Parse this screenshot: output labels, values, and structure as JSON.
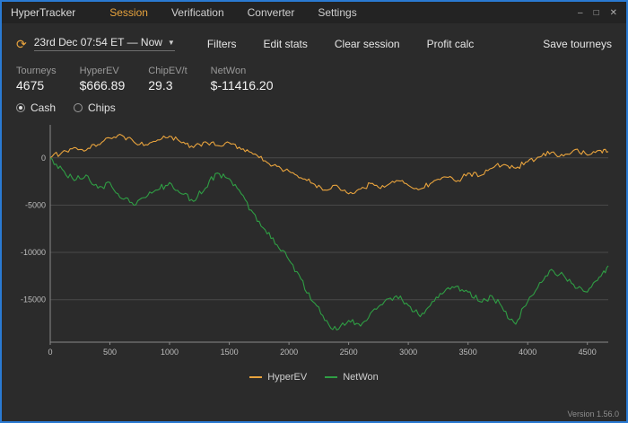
{
  "window": {
    "title": "HyperTracker",
    "controls": {
      "minimize": "–",
      "maximize": "□",
      "close": "✕"
    }
  },
  "menu": {
    "items": [
      {
        "label": "Session",
        "active": true
      },
      {
        "label": "Verification",
        "active": false
      },
      {
        "label": "Converter",
        "active": false
      },
      {
        "label": "Settings",
        "active": false
      }
    ]
  },
  "icons": {
    "refresh": "⟳",
    "caret": "▼"
  },
  "toolbar": {
    "date_range": "23rd Dec 07:54 ET — Now",
    "buttons": [
      "Filters",
      "Edit stats",
      "Clear session",
      "Profit calc"
    ],
    "save_label": "Save tourneys"
  },
  "stats": [
    {
      "label": "Tourneys",
      "value": "4675"
    },
    {
      "label": "HyperEV",
      "value": "$666.89"
    },
    {
      "label": "ChipEV/t",
      "value": "29.3"
    },
    {
      "label": "NetWon",
      "value": "$-11416.20"
    }
  ],
  "view_toggle": {
    "options": [
      {
        "label": "Cash",
        "selected": true
      },
      {
        "label": "Chips",
        "selected": false
      }
    ]
  },
  "chart_data": {
    "type": "line",
    "title": "",
    "xlabel": "",
    "ylabel": "",
    "xlim": [
      0,
      4675
    ],
    "ylim": [
      -19500,
      3500
    ],
    "x_ticks": [
      0,
      500,
      1000,
      1500,
      2000,
      2500,
      3000,
      3500,
      4000,
      4500
    ],
    "y_ticks": [
      0,
      -5000,
      -10000,
      -15000
    ],
    "grid": "horizontal-only",
    "legend_position": "bottom-center",
    "x": [
      0,
      100,
      200,
      300,
      400,
      500,
      600,
      700,
      800,
      900,
      1000,
      1100,
      1200,
      1300,
      1400,
      1500,
      1600,
      1700,
      1800,
      1900,
      2000,
      2100,
      2200,
      2300,
      2400,
      2500,
      2600,
      2700,
      2800,
      2900,
      3000,
      3100,
      3200,
      3300,
      3400,
      3500,
      3600,
      3700,
      3800,
      3900,
      4000,
      4100,
      4200,
      4300,
      4400,
      4500,
      4600,
      4675
    ],
    "series": [
      {
        "name": "HyperEV",
        "color": "#e8a33d",
        "values": [
          0,
          600,
          1100,
          800,
          1400,
          2100,
          2400,
          1700,
          1400,
          1900,
          2300,
          1600,
          1100,
          1700,
          1300,
          1600,
          900,
          400,
          -300,
          -900,
          -1400,
          -2100,
          -2700,
          -3400,
          -2900,
          -3800,
          -3300,
          -2700,
          -3100,
          -2400,
          -2900,
          -3300,
          -2600,
          -2000,
          -2500,
          -1600,
          -1900,
          -1100,
          -700,
          -1100,
          -400,
          100,
          600,
          200,
          900,
          300,
          800,
          666.89
        ]
      },
      {
        "name": "NetWon",
        "color": "#2f9e44",
        "values": [
          0,
          -1200,
          -2400,
          -1800,
          -3200,
          -2600,
          -4300,
          -5000,
          -4200,
          -3400,
          -2600,
          -3800,
          -4600,
          -3200,
          -1600,
          -2200,
          -3800,
          -5800,
          -7600,
          -9200,
          -10800,
          -12800,
          -15200,
          -17200,
          -18200,
          -17200,
          -17800,
          -16200,
          -15200,
          -14600,
          -15600,
          -16800,
          -15200,
          -14200,
          -13600,
          -14200,
          -15200,
          -14600,
          -16200,
          -17600,
          -15200,
          -13200,
          -11800,
          -12400,
          -13800,
          -14200,
          -12600,
          -11416.2
        ]
      }
    ],
    "legend": [
      "HyperEV",
      "NetWon"
    ]
  },
  "footer": {
    "version": "Version 1.56.0"
  }
}
